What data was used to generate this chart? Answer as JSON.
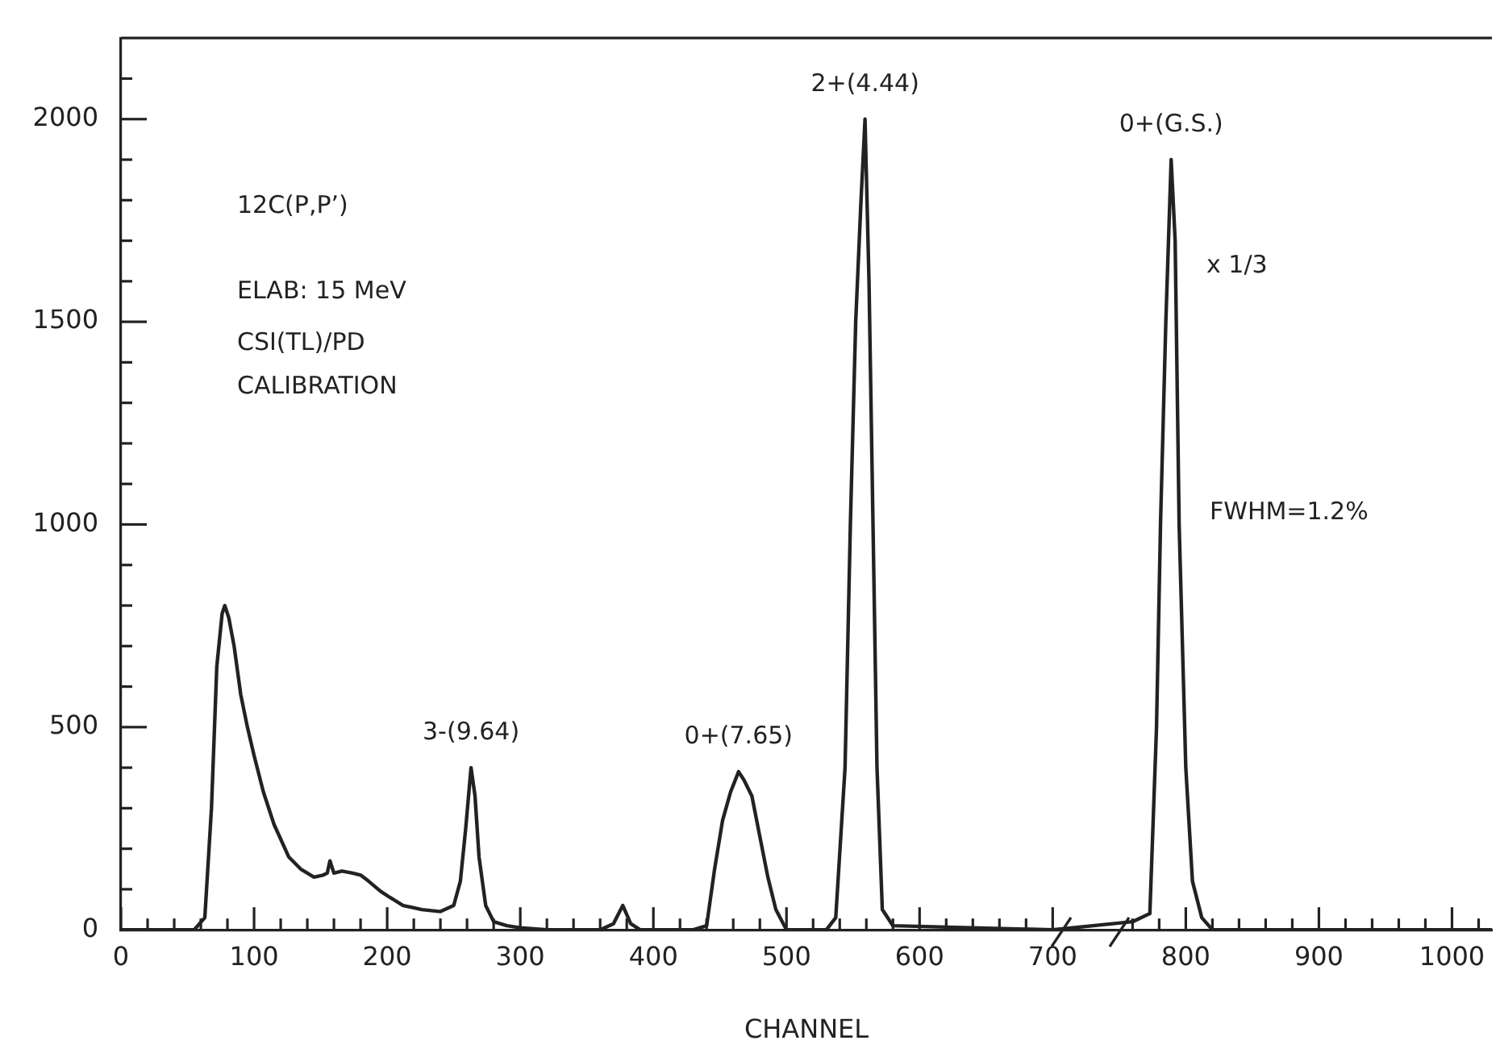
{
  "chart_data": {
    "type": "line",
    "xlabel": "CHANNEL",
    "x": [
      0,
      55,
      63,
      68,
      72,
      76,
      78,
      81,
      85,
      90,
      95,
      100,
      107,
      115,
      126,
      135,
      145,
      152,
      155,
      157,
      160,
      166,
      174,
      180,
      186,
      195,
      202,
      212,
      226,
      240,
      250,
      255,
      259,
      263,
      266,
      269,
      274,
      280,
      290,
      300,
      320,
      360,
      370,
      377,
      383,
      390,
      430,
      440,
      446,
      452,
      458,
      464,
      468,
      474,
      480,
      486,
      492,
      500,
      530,
      537,
      544,
      548,
      552,
      556,
      559,
      562,
      565,
      568,
      572,
      580,
      700,
      760,
      773,
      778,
      781,
      785,
      789,
      792,
      795,
      800,
      805,
      812,
      820,
      1030
    ],
    "series": [
      {
        "color": "#222222",
        "values": [
          0,
          0,
          30,
          300,
          650,
          780,
          800,
          770,
          700,
          580,
          500,
          430,
          340,
          260,
          180,
          150,
          130,
          135,
          140,
          170,
          140,
          145,
          140,
          135,
          120,
          95,
          80,
          60,
          50,
          45,
          60,
          120,
          250,
          400,
          330,
          180,
          60,
          20,
          10,
          5,
          0,
          0,
          15,
          60,
          15,
          0,
          0,
          10,
          150,
          270,
          340,
          390,
          370,
          330,
          230,
          130,
          50,
          0,
          0,
          30,
          400,
          1000,
          1500,
          1800,
          2000,
          1600,
          1000,
          400,
          50,
          10,
          0,
          20,
          40,
          500,
          1000,
          1500,
          1900,
          1700,
          1000,
          400,
          120,
          30,
          0,
          0
        ]
      }
    ],
    "xlim": [
      0,
      1030
    ],
    "xticks": [
      0,
      {
        "value": 20,
        "label": null
      },
      {
        "value": 40,
        "label": null
      },
      {
        "value": 60,
        "label": null
      },
      {
        "value": 80,
        "label": null
      },
      100,
      {
        "value": 120,
        "label": null
      },
      {
        "value": 140,
        "label": null
      },
      {
        "value": 160,
        "label": null
      },
      {
        "value": 180,
        "label": null
      },
      200,
      {
        "value": 220,
        "label": null
      },
      {
        "value": 240,
        "label": null
      },
      {
        "value": 260,
        "label": null
      },
      {
        "value": 280,
        "label": null
      },
      300,
      {
        "value": 320,
        "label": null
      },
      {
        "value": 340,
        "label": null
      },
      {
        "value": 360,
        "label": null
      },
      {
        "value": 380,
        "label": null
      },
      400,
      {
        "value": 420,
        "label": null
      },
      {
        "value": 440,
        "label": null
      },
      {
        "value": 460,
        "label": null
      },
      {
        "value": 480,
        "label": null
      },
      500,
      {
        "value": 520,
        "label": null
      },
      {
        "value": 540,
        "label": null
      },
      {
        "value": 560,
        "label": null
      },
      {
        "value": 580,
        "label": null
      },
      600,
      {
        "value": 620,
        "label": null
      },
      {
        "value": 640,
        "label": null
      },
      {
        "value": 660,
        "label": null
      },
      {
        "value": 680,
        "label": null
      },
      700,
      {
        "value": 760,
        "label": null
      },
      {
        "value": 780,
        "label": null
      },
      800,
      {
        "value": 820,
        "label": null
      },
      {
        "value": 840,
        "label": null
      },
      {
        "value": 860,
        "label": null
      },
      {
        "value": 880,
        "label": null
      },
      900,
      {
        "value": 920,
        "label": null
      },
      {
        "value": 940,
        "label": null
      },
      {
        "value": 960,
        "label": null
      },
      {
        "value": 980,
        "label": null
      },
      1000,
      {
        "value": 1020,
        "label": null
      }
    ],
    "ylim": [
      0,
      2200
    ],
    "yticks": [
      0,
      {
        "value": 100,
        "label": null
      },
      {
        "value": 200,
        "label": null
      },
      {
        "value": 300,
        "label": null
      },
      {
        "value": 400,
        "label": null
      },
      500,
      {
        "value": 600,
        "label": null
      },
      {
        "value": 700,
        "label": null
      },
      {
        "value": 800,
        "label": null
      },
      {
        "value": 900,
        "label": null
      },
      1000,
      {
        "value": 1100,
        "label": null
      },
      {
        "value": 1200,
        "label": null
      },
      {
        "value": 1300,
        "label": null
      },
      {
        "value": 1400,
        "label": null
      },
      1500,
      {
        "value": 1600,
        "label": null
      },
      {
        "value": 1700,
        "label": null
      },
      {
        "value": 1800,
        "label": null
      },
      {
        "value": 1900,
        "label": null
      },
      2000,
      {
        "value": 2100,
        "label": null
      }
    ],
    "grid": false,
    "legend": false,
    "marker": "none",
    "line_style": "solid",
    "annotations": [
      "12C(P,P’)",
      "ELAB: 15 MeV",
      "CSI(TL)/PD",
      "CALIBRATION",
      "x 1/3",
      "FWHM=1.2%",
      {
        "text": "3-(9.64)",
        "x": 263,
        "y": 400
      },
      {
        "text": "0+(7.65)",
        "x": 464,
        "y": 390
      },
      {
        "text": "2+(4.44)",
        "x": 559,
        "y": 2000
      },
      {
        "text": "0+(G.S.)",
        "x": 789,
        "y": 1900
      }
    ]
  }
}
